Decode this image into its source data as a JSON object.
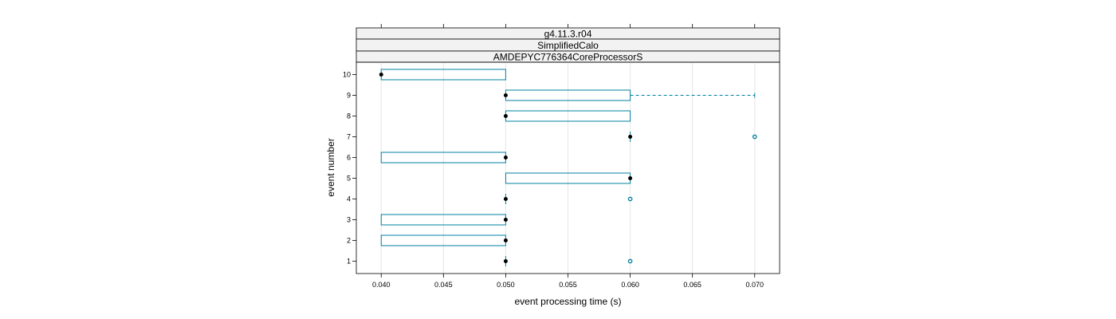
{
  "chart_data": {
    "type": "box",
    "strips": [
      "g4.11.3.r04",
      "SimplifiedCalo",
      "AMDEPYC776364CoreProcessorS"
    ],
    "xlabel": "event processing time (s)",
    "ylabel": "event number",
    "xlim": [
      0.038,
      0.072
    ],
    "x_ticks": [
      {
        "value": 0.04,
        "label": "0.040"
      },
      {
        "value": 0.045,
        "label": "0.045"
      },
      {
        "value": 0.05,
        "label": "0.050"
      },
      {
        "value": 0.055,
        "label": "0.055"
      },
      {
        "value": 0.06,
        "label": "0.060"
      },
      {
        "value": 0.065,
        "label": "0.065"
      },
      {
        "value": 0.07,
        "label": "0.070"
      }
    ],
    "categories": [
      "1",
      "2",
      "3",
      "4",
      "5",
      "6",
      "7",
      "8",
      "9",
      "10"
    ],
    "grid": true,
    "colors": {
      "box": "#0080a0",
      "whisker": "#0080a0",
      "median": "#000000",
      "outlier": "#0080a0",
      "grid": "#e6e6e6",
      "strip_bg": "#f2f2f2"
    },
    "boxes": [
      {
        "event": "1",
        "q1": 0.05,
        "median": 0.05,
        "q3": 0.05,
        "whisker_low": 0.05,
        "whisker_high": 0.05,
        "outliers": [
          0.06
        ]
      },
      {
        "event": "2",
        "q1": 0.04,
        "median": 0.05,
        "q3": 0.05,
        "whisker_low": 0.04,
        "whisker_high": 0.05,
        "outliers": []
      },
      {
        "event": "3",
        "q1": 0.04,
        "median": 0.05,
        "q3": 0.05,
        "whisker_low": 0.04,
        "whisker_high": 0.05,
        "outliers": []
      },
      {
        "event": "4",
        "q1": 0.05,
        "median": 0.05,
        "q3": 0.05,
        "whisker_low": 0.05,
        "whisker_high": 0.05,
        "outliers": [
          0.06
        ]
      },
      {
        "event": "5",
        "q1": 0.05,
        "median": 0.06,
        "q3": 0.06,
        "whisker_low": 0.05,
        "whisker_high": 0.06,
        "outliers": []
      },
      {
        "event": "6",
        "q1": 0.04,
        "median": 0.05,
        "q3": 0.05,
        "whisker_low": 0.04,
        "whisker_high": 0.05,
        "outliers": []
      },
      {
        "event": "7",
        "q1": 0.06,
        "median": 0.06,
        "q3": 0.06,
        "whisker_low": 0.06,
        "whisker_high": 0.06,
        "outliers": [
          0.07
        ]
      },
      {
        "event": "8",
        "q1": 0.05,
        "median": 0.05,
        "q3": 0.06,
        "whisker_low": 0.05,
        "whisker_high": 0.06,
        "outliers": []
      },
      {
        "event": "9",
        "q1": 0.05,
        "median": 0.05,
        "q3": 0.06,
        "whisker_low": 0.05,
        "whisker_high": 0.07,
        "outliers": []
      },
      {
        "event": "10",
        "q1": 0.04,
        "median": 0.04,
        "q3": 0.05,
        "whisker_low": 0.04,
        "whisker_high": 0.05,
        "outliers": []
      }
    ]
  }
}
